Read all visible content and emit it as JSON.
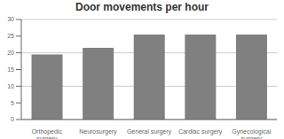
{
  "chart_data": {
    "type": "bar",
    "title": "Door movements per hour",
    "categories": [
      "Orthopedic\nsurgery",
      "Neurosurgery",
      "General surgery",
      "Cardiac surgery",
      "Gynecological\nsurgery"
    ],
    "values": [
      19.5,
      21.5,
      25.5,
      25.5,
      25.5
    ],
    "color": "#808080",
    "ylim": [
      0,
      30
    ],
    "yticks": [
      0,
      5,
      10,
      15,
      20,
      25,
      30
    ],
    "grid": true
  }
}
